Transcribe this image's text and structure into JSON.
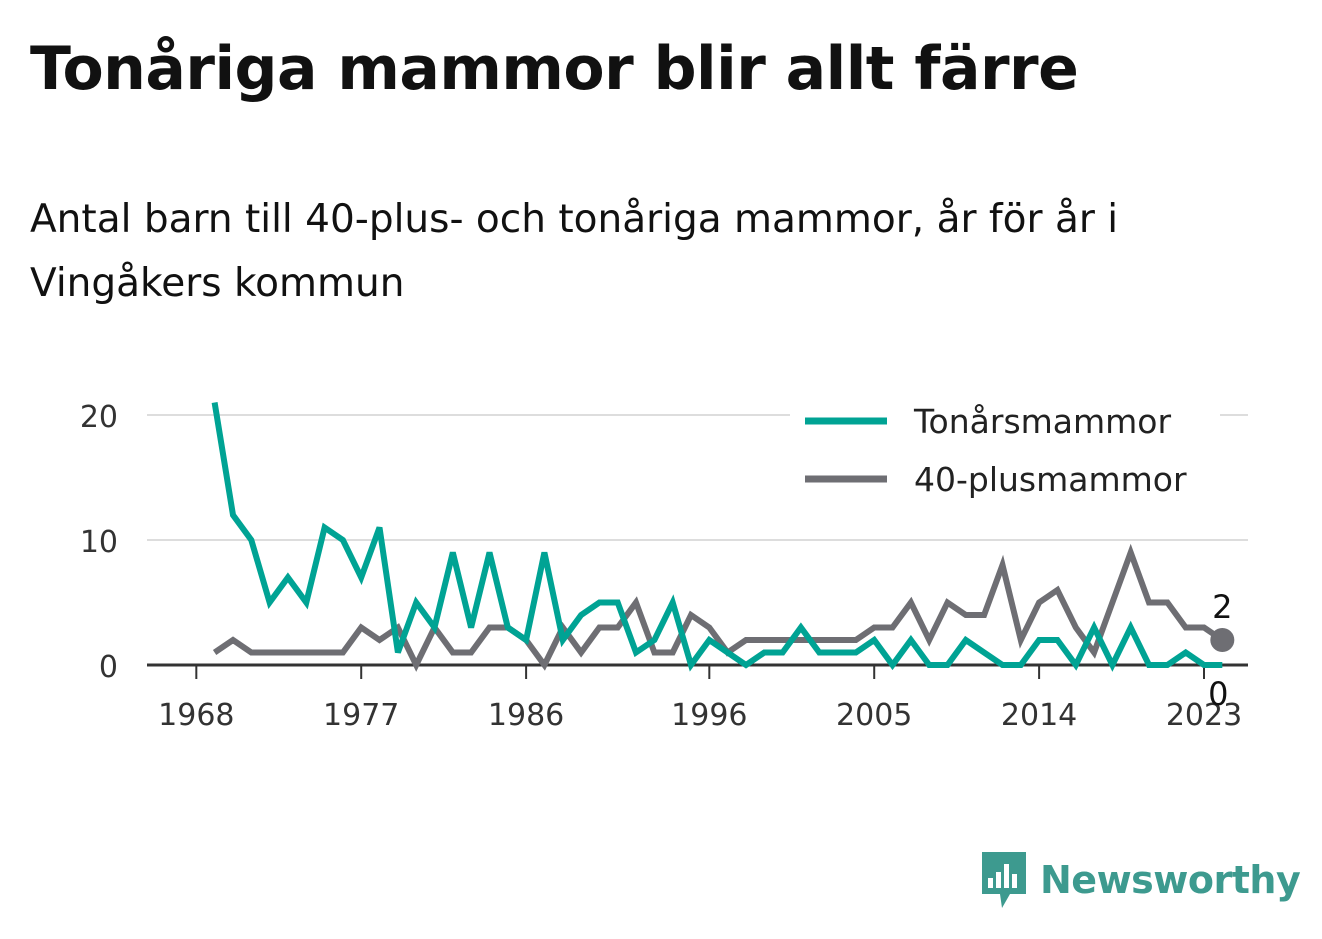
{
  "title": "Tonåriga mammor blir allt färre",
  "subtitle": "Antal barn till 40-plus- och tonåriga mammor, år för år i Vingåkers kommun",
  "brand": {
    "name": "Newsworthy",
    "icon": "newsworthy-logo-icon",
    "color": "#3d9a8f"
  },
  "chart_data": {
    "type": "line",
    "x": [
      1969,
      1970,
      1971,
      1972,
      1973,
      1974,
      1975,
      1976,
      1977,
      1978,
      1979,
      1980,
      1981,
      1982,
      1983,
      1984,
      1985,
      1986,
      1987,
      1988,
      1989,
      1990,
      1991,
      1992,
      1993,
      1994,
      1995,
      1996,
      1997,
      1998,
      1999,
      2000,
      2001,
      2002,
      2003,
      2004,
      2005,
      2006,
      2007,
      2008,
      2009,
      2010,
      2011,
      2012,
      2013,
      2014,
      2015,
      2016,
      2017,
      2018,
      2019,
      2020,
      2021,
      2022,
      2023,
      2024
    ],
    "series": [
      {
        "name": "Tonårsmammor",
        "color": "#00a394",
        "values": [
          21,
          12,
          10,
          5,
          7,
          5,
          11,
          10,
          7,
          11,
          1,
          5,
          3,
          9,
          3,
          9,
          3,
          2,
          9,
          2,
          4,
          5,
          5,
          1,
          2,
          5,
          0,
          2,
          1,
          0,
          1,
          1,
          3,
          1,
          1,
          1,
          2,
          0,
          2,
          0,
          0,
          2,
          1,
          0,
          0,
          2,
          2,
          0,
          3,
          0,
          3,
          0,
          0,
          1,
          0,
          0
        ]
      },
      {
        "name": "40-plusmammor",
        "color": "#6e6e73",
        "values": [
          1,
          2,
          1,
          1,
          1,
          1,
          1,
          1,
          3,
          2,
          3,
          0,
          3,
          1,
          1,
          3,
          3,
          2,
          0,
          3,
          1,
          3,
          3,
          5,
          1,
          1,
          4,
          3,
          1,
          2,
          2,
          2,
          2,
          2,
          2,
          2,
          3,
          3,
          5,
          2,
          5,
          4,
          4,
          8,
          2,
          5,
          6,
          3,
          1,
          5,
          9,
          5,
          5,
          3,
          3,
          2
        ]
      }
    ],
    "xticks": [
      "1968",
      "1977",
      "1986",
      "1996",
      "2005",
      "2014",
      "2023"
    ],
    "yticks": [
      "0",
      "10",
      "20"
    ],
    "ylim": [
      0,
      22
    ],
    "end_labels": {
      "40-plusmammor": "2",
      "Tonårsmammor": "0"
    },
    "grid": true,
    "legend": "top-right"
  }
}
